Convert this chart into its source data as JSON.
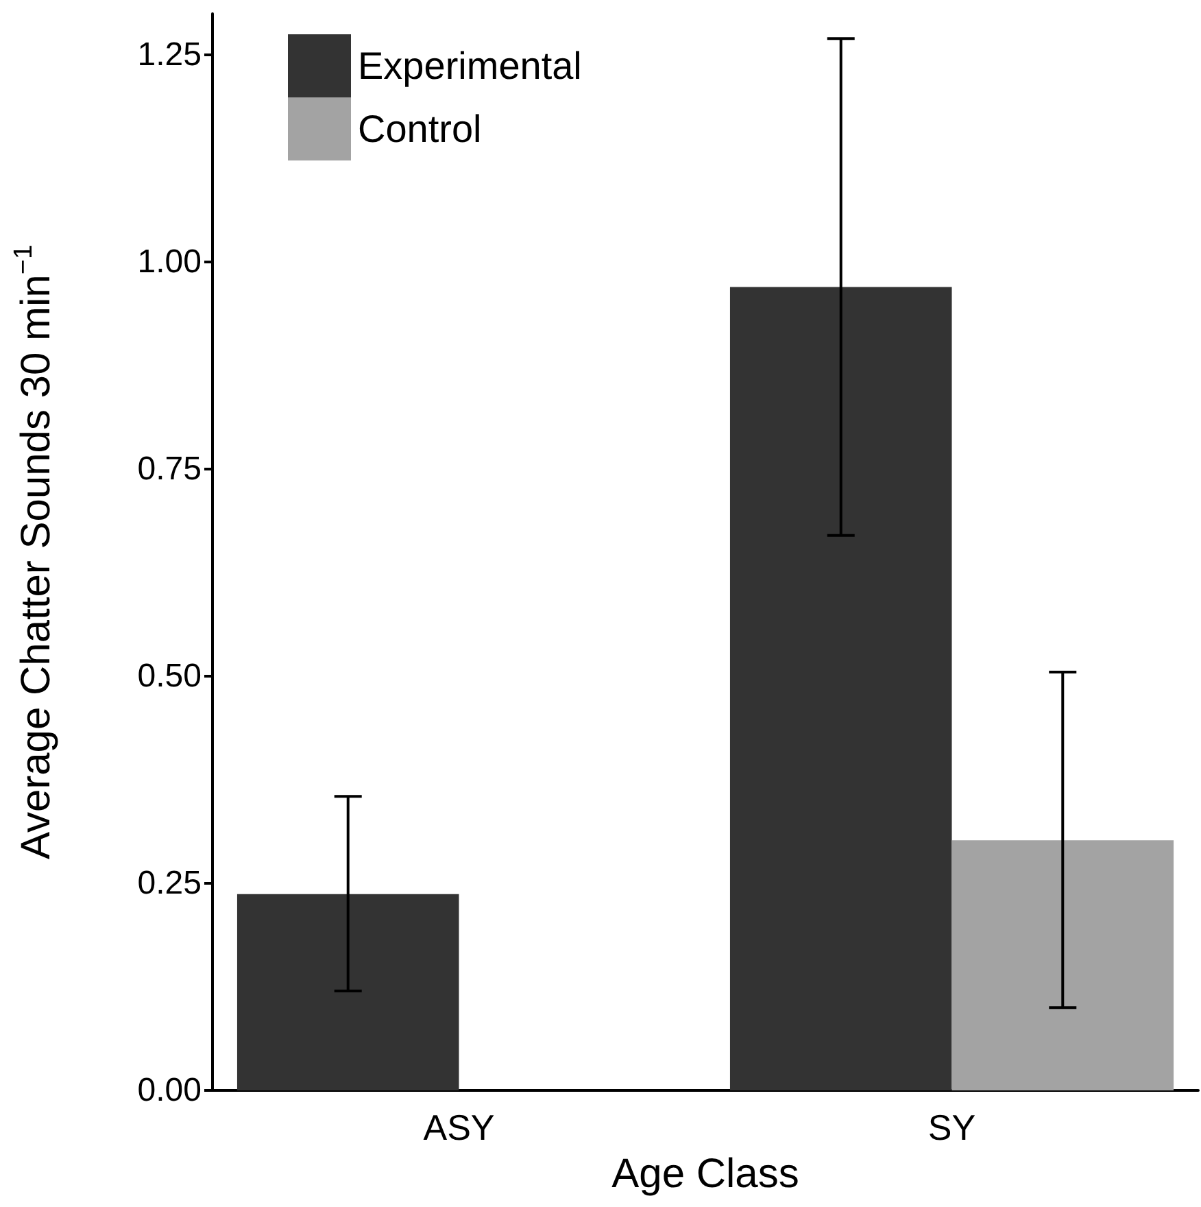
{
  "chart_data": {
    "type": "bar",
    "xlabel": "Age Class",
    "ylabel": "Average Chatter Sounds 30 min$^{−1}$",
    "categories": [
      "ASY",
      "SY"
    ],
    "series": [
      {
        "name": "Experimental",
        "color": "#333333",
        "values": [
          0.237,
          0.97
        ],
        "errors": [
          [
            0.12,
            0.355
          ],
          [
            0.67,
            1.27
          ]
        ]
      },
      {
        "name": "Control",
        "color": "#a3a3a3",
        "values": [
          0,
          0.302
        ],
        "errors": [
          null,
          [
            0.1,
            0.505
          ]
        ]
      }
    ],
    "ylim": [
      0,
      1.3
    ],
    "yticks": [
      {
        "value": 0,
        "label": "0.00"
      },
      {
        "value": 0.25,
        "label": "0.25"
      },
      {
        "value": 0.5,
        "label": "0.50"
      },
      {
        "value": 0.75,
        "label": "0.75"
      },
      {
        "value": 1,
        "label": "1.00"
      },
      {
        "value": 1.25,
        "label": "1.25"
      }
    ],
    "grid": false,
    "legend": "top left"
  }
}
